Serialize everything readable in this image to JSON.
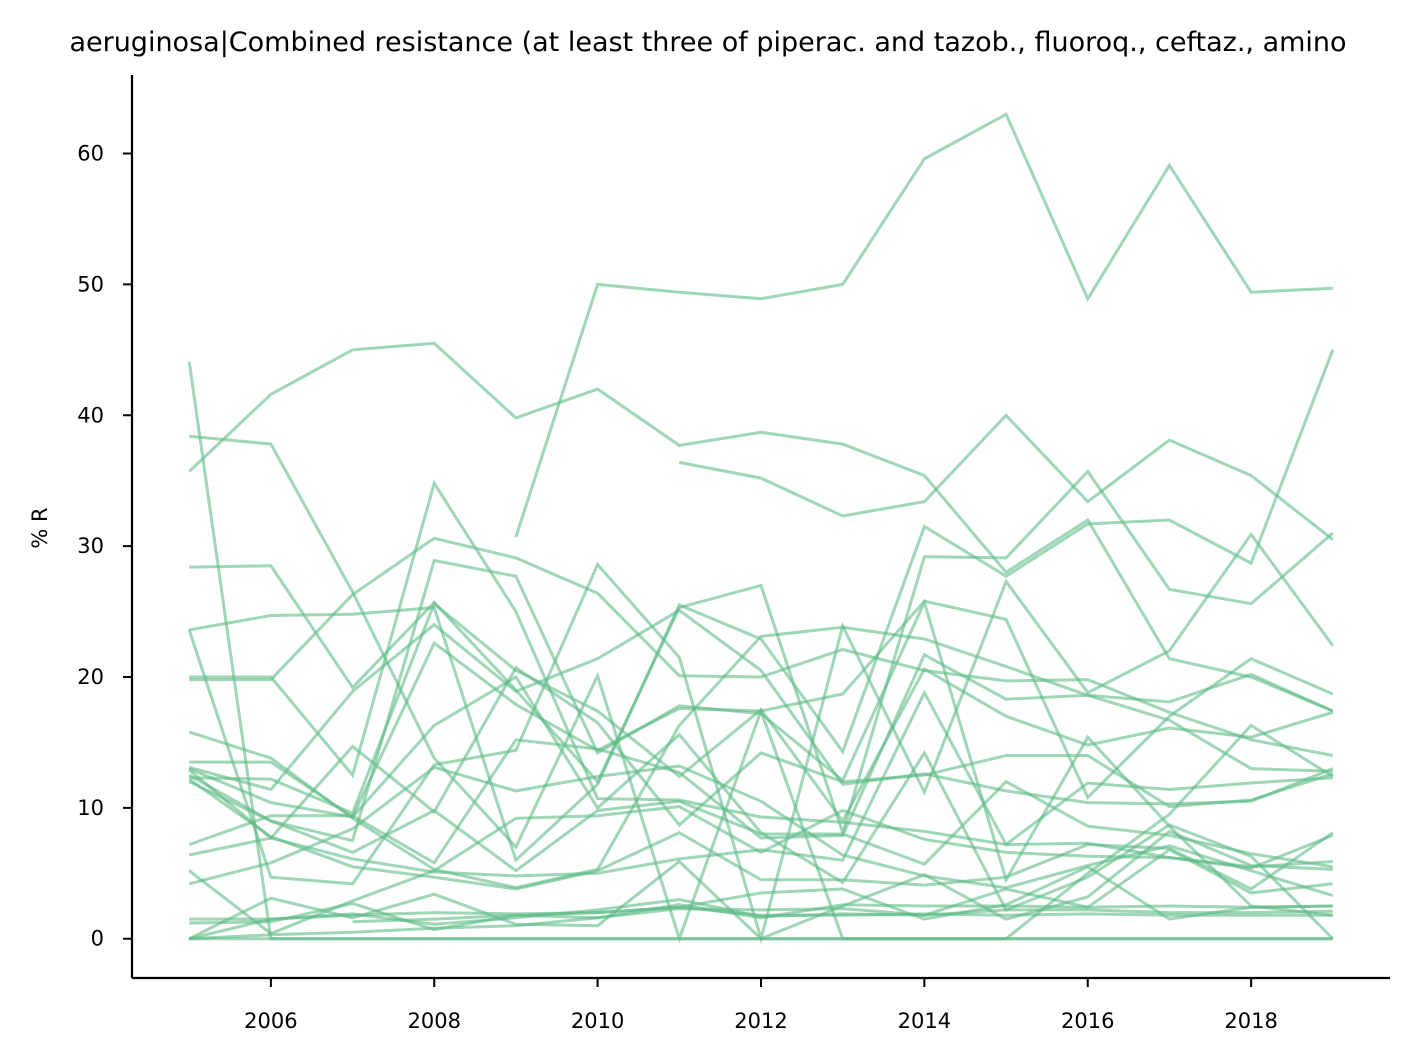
{
  "chart_data": {
    "type": "line",
    "title": "aeruginosa|Combined resistance (at least three of piperac. and tazob., fluoroq., ceftaz., amino",
    "xlabel": "",
    "ylabel": "% R",
    "xlim": [
      2004.3,
      2019.7
    ],
    "ylim": [
      -3,
      66
    ],
    "xticks": [
      2006,
      2008,
      2010,
      2012,
      2014,
      2016,
      2018
    ],
    "yticks": [
      0,
      10,
      20,
      30,
      40,
      50,
      60
    ],
    "grid": false,
    "legend": "none",
    "line_color": "#5dbb85",
    "line_opacity": 0.6,
    "x": [
      2005,
      2006,
      2007,
      2008,
      2009,
      2010,
      2011,
      2012,
      2013,
      2014,
      2015,
      2016,
      2017,
      2018,
      2019
    ],
    "series": [
      {
        "values": [
          null,
          null,
          null,
          null,
          30.7,
          50.0,
          49.4,
          48.9,
          50.0,
          59.6,
          63.0,
          48.9,
          59.1,
          49.4,
          49.7
        ]
      },
      {
        "values": [
          35.7,
          41.6,
          45.0,
          45.5,
          39.8,
          42.0,
          37.7,
          38.7,
          37.8,
          35.4,
          28.0,
          32.0,
          21.4,
          20.0,
          17.4
        ]
      },
      {
        "values": [
          null,
          null,
          null,
          null,
          null,
          null,
          36.4,
          35.2,
          32.3,
          33.4,
          40.0,
          33.4,
          38.1,
          35.4,
          30.5
        ]
      },
      {
        "values": [
          44.1,
          0.0,
          0.0,
          0.0,
          0.0,
          0.0,
          0.0,
          0.0,
          0.0,
          0.0,
          0.0,
          0.0,
          0.0,
          0.0,
          0.0
        ]
      },
      {
        "values": [
          38.4,
          37.8,
          26.5,
          13.8,
          7.0,
          20.1,
          0.0,
          17.4,
          0.0,
          0.0,
          0.0,
          5.0,
          9.5,
          16.3,
          12.4
        ]
      },
      {
        "values": [
          28.4,
          28.5,
          19.2,
          25.7,
          19.0,
          12.0,
          25.3,
          27.0,
          8.1,
          29.2,
          29.1,
          35.7,
          26.7,
          25.6,
          31.0
        ]
      },
      {
        "values": [
          23.6,
          24.7,
          24.8,
          25.3,
          6.0,
          11.8,
          25.5,
          22.9,
          14.3,
          31.5,
          27.7,
          31.7,
          32.0,
          28.7,
          45.0
        ]
      },
      {
        "values": [
          23.6,
          4.7,
          4.2,
          13.3,
          14.4,
          28.6,
          21.5,
          0.0,
          23.9,
          11.2,
          27.3,
          18.8,
          22.0,
          30.9,
          22.4
        ]
      },
      {
        "values": [
          19.8,
          19.8,
          26.3,
          30.6,
          29.1,
          26.4,
          20.1,
          20.0,
          22.1,
          20.5,
          19.7,
          19.8,
          17.3,
          15.2,
          14.0
        ]
      },
      {
        "values": [
          20.0,
          20.0,
          12.5,
          34.8,
          25.0,
          10.7,
          10.6,
          9.3,
          8.9,
          8.2,
          7.2,
          7.3,
          6.2,
          5.5,
          5.9
        ]
      },
      {
        "values": [
          15.8,
          13.8,
          9.2,
          5.3,
          3.9,
          5.3,
          16.3,
          23.1,
          23.8,
          22.9,
          20.8,
          18.6,
          16.7,
          13.0,
          12.8
        ]
      },
      {
        "values": [
          13.5,
          13.5,
          9.3,
          22.6,
          17.9,
          14.4,
          17.6,
          17.4,
          18.7,
          25.8,
          24.4,
          10.8,
          17.0,
          21.4,
          18.7
        ]
      },
      {
        "values": [
          12.9,
          7.7,
          14.7,
          9.7,
          20.7,
          16.5,
          8.7,
          14.2,
          12.0,
          12.5,
          14.0,
          14.0,
          10.1,
          10.6,
          12.6
        ]
      },
      {
        "values": [
          12.3,
          12.2,
          9.6,
          25.6,
          20.5,
          17.4,
          12.4,
          17.5,
          9.0,
          20.6,
          17.0,
          14.8,
          16.1,
          15.4,
          17.3
        ]
      },
      {
        "values": [
          12.0,
          9.0,
          7.5,
          28.9,
          27.7,
          14.2,
          17.8,
          17.2,
          12.1,
          25.7,
          4.5,
          15.4,
          8.6,
          2.5,
          1.8
        ]
      },
      {
        "values": [
          13.1,
          11.4,
          18.9,
          24.0,
          18.9,
          21.4,
          25.1,
          20.5,
          11.8,
          12.6,
          11.3,
          10.4,
          10.3,
          10.5,
          13.0
        ]
      },
      {
        "values": [
          7.2,
          9.4,
          9.4,
          5.8,
          15.2,
          14.5,
          12.7,
          7.7,
          7.9,
          21.7,
          18.3,
          18.6,
          18.1,
          20.2,
          17.4
        ]
      },
      {
        "values": [
          6.4,
          7.7,
          6.1,
          5.1,
          4.8,
          5.0,
          6.1,
          6.8,
          6.0,
          18.8,
          7.2,
          11.9,
          11.4,
          11.9,
          12.3
        ]
      },
      {
        "values": [
          4.2,
          5.8,
          8.4,
          13.1,
          11.3,
          12.4,
          13.2,
          10.5,
          6.4,
          4.8,
          3.9,
          5.6,
          7.1,
          5.2,
          3.3
        ]
      },
      {
        "values": [
          12.2,
          7.8,
          5.5,
          4.7,
          3.8,
          5.2,
          8.1,
          4.5,
          4.5,
          4.1,
          4.7,
          7.2,
          6.9,
          3.8,
          8.1
        ]
      },
      {
        "values": [
          13.0,
          10.4,
          9.3,
          16.3,
          20.0,
          10.0,
          15.6,
          8.1,
          4.3,
          14.2,
          2.2,
          4.7,
          8.7,
          6.3,
          0.0
        ]
      },
      {
        "values": [
          12.5,
          9.0,
          6.6,
          9.8,
          5.2,
          9.8,
          10.5,
          8.0,
          8.0,
          5.7,
          12.0,
          8.6,
          7.9,
          6.5,
          5.5
        ]
      },
      {
        "values": [
          5.2,
          0.4,
          2.9,
          5.2,
          9.2,
          9.4,
          10.1,
          6.6,
          9.8,
          7.6,
          6.6,
          6.3,
          6.2,
          5.4,
          7.9
        ]
      },
      {
        "values": [
          0.0,
          3.1,
          1.6,
          3.4,
          1.1,
          1.0,
          5.9,
          0.0,
          2.5,
          4.9,
          1.5,
          3.2,
          8.2,
          5.6,
          5.3
        ]
      },
      {
        "values": [
          1.2,
          1.3,
          2.7,
          0.7,
          1.8,
          2.0,
          2.4,
          3.5,
          3.8,
          1.5,
          2.6,
          5.5,
          1.5,
          2.4,
          2.5
        ]
      },
      {
        "values": [
          0.0,
          0.3,
          0.5,
          0.8,
          1.0,
          1.6,
          2.3,
          2.2,
          2.3,
          1.8,
          2.2,
          2.2,
          2.0,
          2.0,
          2.1
        ]
      },
      {
        "values": [
          null,
          null,
          1.3,
          1.5,
          1.8,
          1.6,
          2.6,
          1.6,
          2.6,
          2.5,
          2.5,
          2.4,
          2.5,
          2.4,
          2.5
        ]
      },
      {
        "values": [
          0.0,
          0.0,
          0.0,
          0.0,
          0.0,
          0.0,
          0.0,
          0.0,
          0.0,
          0.0,
          0.0,
          0.0,
          0.0,
          0.0,
          0.0
        ]
      },
      {
        "values": [
          1.5,
          1.5,
          1.8,
          2.0,
          1.9,
          2.0,
          2.4,
          1.8,
          1.8,
          1.9,
          1.8,
          1.9,
          1.8,
          1.8,
          1.8
        ]
      },
      {
        "values": [
          0.0,
          1.5,
          1.9,
          1.1,
          1.6,
          2.2,
          3.0,
          1.7,
          1.9,
          1.8,
          3.8,
          2.4,
          6.8,
          3.5,
          4.2
        ]
      }
    ]
  }
}
